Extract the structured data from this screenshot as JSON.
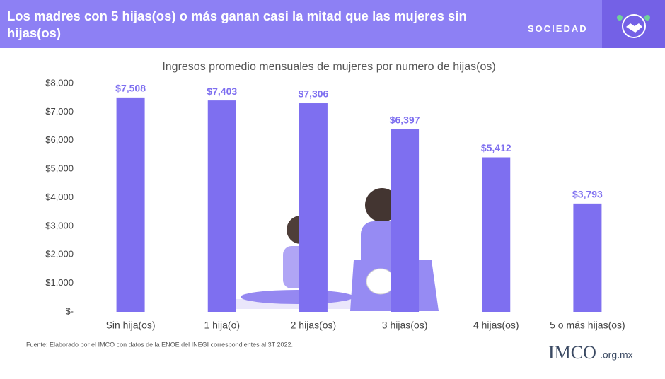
{
  "header": {
    "title": "Los madres con 5 hijas(os) o más ganan casi la mitad que las mujeres sin hijas(os)",
    "section": "SOCIEDAD"
  },
  "chart_data": {
    "type": "bar",
    "title": "Ingresos promedio mensuales de mujeres por numero de hijas(os)",
    "categories": [
      "Sin hija(os)",
      "1 hija(o)",
      "2 hijas(os)",
      "3 hijas(os)",
      "4 hijas(os)",
      "5 o más hijas(os)"
    ],
    "values": [
      7508,
      7403,
      7306,
      6397,
      5412,
      3793
    ],
    "value_labels": [
      "$7,508",
      "$7,403",
      "$7,306",
      "$6,397",
      "$5,412",
      "$3,793"
    ],
    "color": "#7e6ff0",
    "ylim": [
      0,
      8000
    ],
    "yticks": [
      {
        "value": 0,
        "label": "$-"
      },
      {
        "value": 1000,
        "label": "$1,000"
      },
      {
        "value": 2000,
        "label": "$2,000"
      },
      {
        "value": 3000,
        "label": "$3,000"
      },
      {
        "value": 4000,
        "label": "$4,000"
      },
      {
        "value": 5000,
        "label": "$5,000"
      },
      {
        "value": 6000,
        "label": "$6,000"
      },
      {
        "value": 7000,
        "label": "$7,000"
      },
      {
        "value": 8000,
        "label": "$8,000"
      }
    ],
    "grid": false
  },
  "footer": {
    "source": "Fuente:  Elaborado por el IMCO con datos de la ENOE del INEGI  correspondientes al 3T 2022.",
    "logo": "IMCO",
    "domain": ".org.mx"
  }
}
